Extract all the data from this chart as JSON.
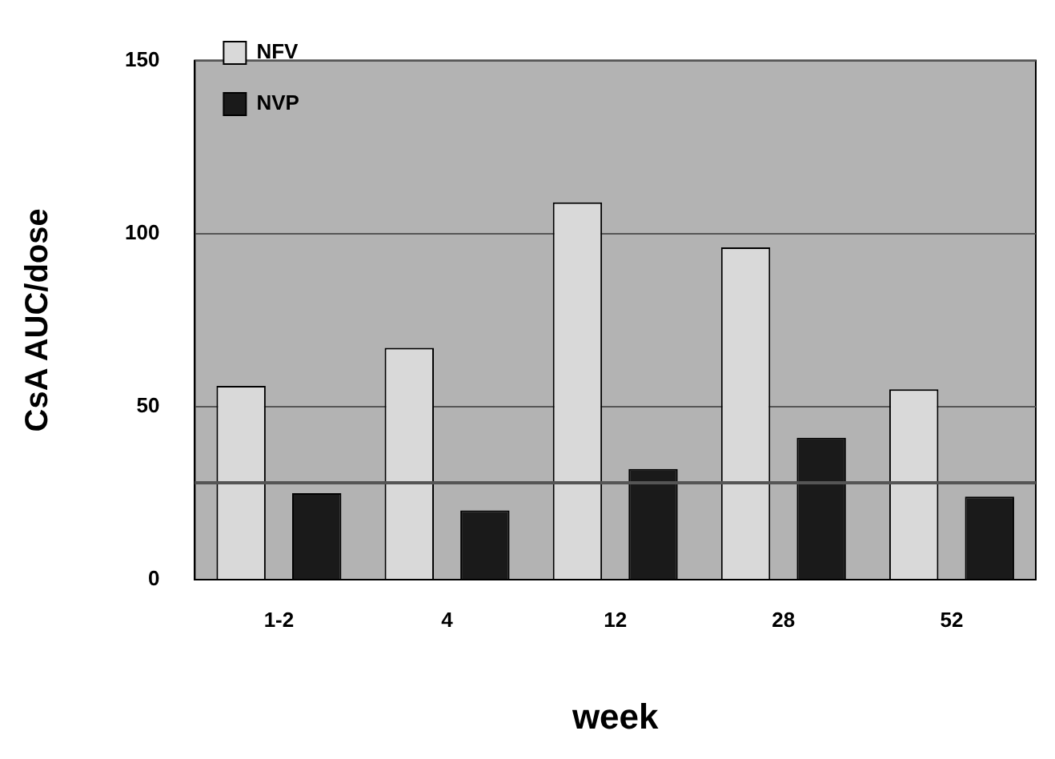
{
  "chart_data": {
    "type": "bar",
    "xlabel": "week",
    "ylabel": "CsA AUC/dose",
    "categories": [
      "1-2",
      "4",
      "12",
      "28",
      "52"
    ],
    "series": [
      {
        "name": "NFV",
        "color": "#d9d9d9",
        "values": [
          56,
          67,
          109,
          96,
          55
        ]
      },
      {
        "name": "NVP",
        "color": "#1a1a1a",
        "values": [
          25,
          20,
          32,
          41,
          24
        ]
      }
    ],
    "ylim": [
      0,
      150
    ],
    "yticks": [
      0,
      50,
      100,
      150
    ],
    "grid": "y",
    "legend": "top left",
    "ref_lines": [
      {
        "axis": "y",
        "value": 28,
        "color": "#555555"
      }
    ]
  }
}
